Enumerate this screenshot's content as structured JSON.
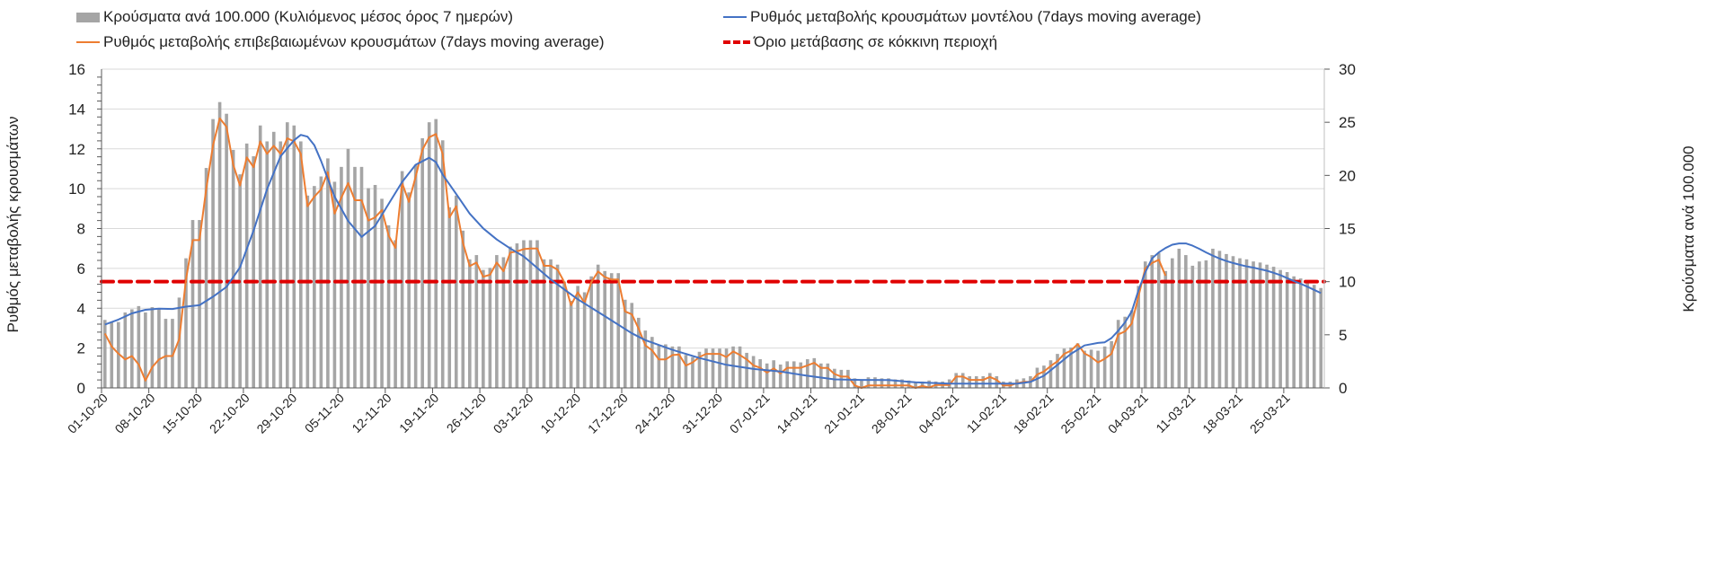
{
  "legend": {
    "bars": "Κρούσματα ανά 100.000 (Κυλιόμενος μέσος όρος 7 ημερών)",
    "model": "Ρυθμός μεταβολής κρουσμάτων μοντέλου (7days moving average)",
    "confirmed": "Ρυθμός μεταβολής επιβεβαιωμένων κρουσμάτων (7days moving average)",
    "threshold": "Όριο μετάβασης σε κόκκινη περιοχή"
  },
  "chart_data": {
    "type": "bar+line",
    "ylabel_left": "Ρυθμός μεταβολής κρουσμάτων",
    "ylabel_right": "Κρούσματα ανά 100.000",
    "ylim_left": [
      0,
      16
    ],
    "yticks_left": [
      0,
      2,
      4,
      6,
      8,
      10,
      12,
      14,
      16
    ],
    "ylim_right": [
      0,
      30
    ],
    "yticks_right": [
      0,
      5,
      10,
      15,
      20,
      25,
      30
    ],
    "grid": true,
    "legend_position": "top",
    "days": 181,
    "x_tick_labels": [
      "01-10-20",
      "08-10-20",
      "15-10-20",
      "22-10-20",
      "29-10-20",
      "05-11-20",
      "12-11-20",
      "19-11-20",
      "26-11-20",
      "03-12-20",
      "10-12-20",
      "17-12-20",
      "24-12-20",
      "31-12-20",
      "07-01-21",
      "14-01-21",
      "21-01-21",
      "28-01-21",
      "04-02-21",
      "11-02-21",
      "18-02-21",
      "25-02-21",
      "04-03-21",
      "11-03-21",
      "18-03-21",
      "25-03-21"
    ],
    "x_tick_step_days": 7,
    "colors": {
      "bars": "#a5a5a5",
      "model": "#4472c4",
      "confirmed": "#ed7d31",
      "threshold": "#e00000",
      "grid": "#d9d9d9"
    },
    "threshold_right_axis": 10,
    "bars_per_100k_right_axis": [
      6.4,
      6.2,
      6.2,
      7.1,
      7.4,
      7.7,
      7.1,
      7.6,
      7.5,
      6.5,
      6.5,
      8.5,
      12.2,
      15.8,
      15.8,
      20.7,
      25.3,
      26.9,
      25.8,
      22.4,
      20.1,
      23.0,
      21.8,
      24.7,
      23.2,
      24.1,
      23.2,
      25.0,
      24.7,
      23.2,
      18.1,
      19.0,
      19.9,
      21.6,
      19.4,
      20.8,
      22.5,
      20.8,
      20.8,
      18.8,
      19.1,
      17.8,
      15.3,
      13.9,
      20.4,
      18.4,
      21.0,
      23.5,
      25.0,
      25.3,
      23.3,
      17.0,
      18.1,
      14.8,
      12.1,
      12.5,
      11.1,
      11.3,
      12.5,
      12.3,
      13.3,
      13.6,
      13.9,
      13.9,
      13.9,
      12.1,
      12.1,
      11.6,
      10.0,
      8.2,
      9.6,
      9.0,
      10.5,
      11.6,
      11.0,
      10.8,
      10.8,
      8.3,
      8.0,
      6.6,
      5.4,
      4.8,
      4.0,
      4.1,
      3.9,
      3.9,
      3.1,
      2.9,
      3.4,
      3.7,
      3.7,
      3.7,
      3.7,
      3.9,
      3.9,
      3.3,
      3.0,
      2.7,
      2.3,
      2.6,
      2.2,
      2.5,
      2.5,
      2.4,
      2.7,
      2.8,
      2.3,
      2.3,
      1.8,
      1.7,
      1.7,
      0.9,
      0.7,
      1.0,
      1.0,
      0.9,
      0.9,
      0.8,
      0.8,
      0.7,
      0.5,
      0.6,
      0.7,
      0.6,
      0.6,
      0.8,
      1.4,
      1.4,
      1.1,
      1.1,
      1.1,
      1.4,
      1.1,
      0.6,
      0.6,
      0.8,
      0.9,
      1.1,
      1.9,
      2.1,
      2.6,
      3.2,
      3.7,
      3.8,
      4.2,
      3.5,
      3.6,
      3.5,
      3.9,
      4.4,
      6.4,
      6.7,
      7.3,
      9.6,
      11.9,
      12.5,
      12.7,
      11.0,
      12.2,
      13.1,
      12.5,
      11.5,
      11.9,
      12.0,
      13.1,
      12.9,
      12.6,
      12.4,
      12.2,
      12.1,
      11.9,
      11.8,
      11.6,
      11.4,
      11.1,
      10.9,
      10.5,
      10.3,
      9.9,
      9.7,
      9.4
    ],
    "confirmed_rate_left_axis": [
      2.73,
      2.08,
      1.72,
      1.43,
      1.6,
      1.17,
      0.37,
      1.04,
      1.43,
      1.6,
      1.6,
      2.45,
      5.44,
      7.42,
      7.42,
      9.97,
      12.18,
      13.53,
      13.1,
      11.2,
      10.16,
      11.57,
      11.08,
      12.37,
      11.75,
      12.15,
      11.75,
      12.53,
      12.37,
      11.75,
      9.12,
      9.6,
      9.97,
      10.83,
      8.75,
      9.55,
      10.28,
      9.42,
      9.42,
      8.4,
      8.56,
      8.93,
      7.64,
      7.03,
      10.28,
      9.34,
      10.59,
      11.96,
      12.58,
      12.74,
      11.75,
      8.56,
      9.12,
      7.28,
      6.11,
      6.29,
      5.58,
      5.68,
      6.29,
      5.86,
      6.79,
      6.85,
      6.97,
      7.0,
      7.0,
      6.13,
      6.13,
      5.93,
      5.31,
      4.15,
      4.8,
      4.27,
      5.31,
      5.84,
      5.56,
      5.44,
      5.44,
      3.84,
      3.69,
      2.98,
      2.13,
      1.89,
      1.43,
      1.43,
      1.65,
      1.67,
      1.12,
      1.28,
      1.55,
      1.71,
      1.71,
      1.71,
      1.55,
      1.83,
      1.65,
      1.43,
      1.13,
      1.01,
      0.77,
      0.98,
      0.73,
      1.01,
      1.01,
      1.01,
      1.13,
      1.26,
      1.0,
      1.0,
      0.7,
      0.57,
      0.57,
      0.12,
      0,
      0.12,
      0.12,
      0.12,
      0.12,
      0.12,
      0.12,
      0.12,
      0,
      0.1,
      0.02,
      0.15,
      0.15,
      0.15,
      0.57,
      0.57,
      0.4,
      0.4,
      0.4,
      0.55,
      0.4,
      0.12,
      0.12,
      0.24,
      0.3,
      0.3,
      0.67,
      0.82,
      1.1,
      1.34,
      1.71,
      1.87,
      2.2,
      1.73,
      1.55,
      1.28,
      1.46,
      1.71,
      2.68,
      2.84,
      3.23,
      4.6,
      6.0,
      6.27,
      6.43,
      5.63
    ],
    "model_rate_left_axis": [
      [
        0,
        3.18
      ],
      [
        2,
        3.43
      ],
      [
        4,
        3.74
      ],
      [
        6,
        3.92
      ],
      [
        8,
        3.98
      ],
      [
        10,
        3.96
      ],
      [
        12,
        4.08
      ],
      [
        14,
        4.15
      ],
      [
        16,
        4.58
      ],
      [
        18,
        5.07
      ],
      [
        20,
        6.05
      ],
      [
        22,
        7.89
      ],
      [
        24,
        9.97
      ],
      [
        26,
        11.63
      ],
      [
        28,
        12.43
      ],
      [
        29,
        12.7
      ],
      [
        30,
        12.61
      ],
      [
        31,
        12.18
      ],
      [
        32,
        11.39
      ],
      [
        34,
        9.6
      ],
      [
        36,
        8.38
      ],
      [
        38,
        7.58
      ],
      [
        40,
        8.13
      ],
      [
        42,
        9.24
      ],
      [
        44,
        10.34
      ],
      [
        46,
        11.2
      ],
      [
        48,
        11.55
      ],
      [
        49,
        11.33
      ],
      [
        50,
        10.71
      ],
      [
        52,
        9.73
      ],
      [
        54,
        8.75
      ],
      [
        56,
        8.01
      ],
      [
        58,
        7.45
      ],
      [
        60,
        7.0
      ],
      [
        62,
        6.6
      ],
      [
        66,
        5.44
      ],
      [
        70,
        4.45
      ],
      [
        74,
        3.6
      ],
      [
        78,
        2.74
      ],
      [
        80,
        2.4
      ],
      [
        84,
        1.91
      ],
      [
        88,
        1.5
      ],
      [
        92,
        1.16
      ],
      [
        96,
        0.95
      ],
      [
        100,
        0.82
      ],
      [
        104,
        0.61
      ],
      [
        108,
        0.43
      ],
      [
        112,
        0.4
      ],
      [
        116,
        0.39
      ],
      [
        120,
        0.28
      ],
      [
        125,
        0.21
      ],
      [
        130,
        0.21
      ],
      [
        135,
        0.21
      ],
      [
        137,
        0.3
      ],
      [
        139,
        0.61
      ],
      [
        141,
        1.16
      ],
      [
        143,
        1.71
      ],
      [
        145,
        2.13
      ],
      [
        147,
        2.26
      ],
      [
        148,
        2.29
      ],
      [
        149,
        2.5
      ],
      [
        150,
        2.87
      ],
      [
        151,
        3.29
      ],
      [
        152,
        3.84
      ],
      [
        153,
        4.9
      ],
      [
        154,
        5.8
      ],
      [
        155,
        6.5
      ],
      [
        156,
        6.8
      ],
      [
        157,
        7.02
      ],
      [
        158,
        7.19
      ],
      [
        159,
        7.25
      ],
      [
        160,
        7.25
      ],
      [
        161,
        7.14
      ],
      [
        162,
        6.98
      ],
      [
        163,
        6.8
      ],
      [
        164,
        6.64
      ],
      [
        165,
        6.49
      ],
      [
        166,
        6.37
      ],
      [
        167,
        6.27
      ],
      [
        168,
        6.18
      ],
      [
        169,
        6.1
      ],
      [
        170,
        6.04
      ],
      [
        171,
        5.96
      ],
      [
        172,
        5.88
      ],
      [
        173,
        5.78
      ],
      [
        174,
        5.66
      ],
      [
        175,
        5.51
      ],
      [
        176,
        5.36
      ],
      [
        177,
        5.23
      ],
      [
        178,
        5.08
      ],
      [
        179,
        4.92
      ],
      [
        180,
        4.76
      ]
    ]
  }
}
